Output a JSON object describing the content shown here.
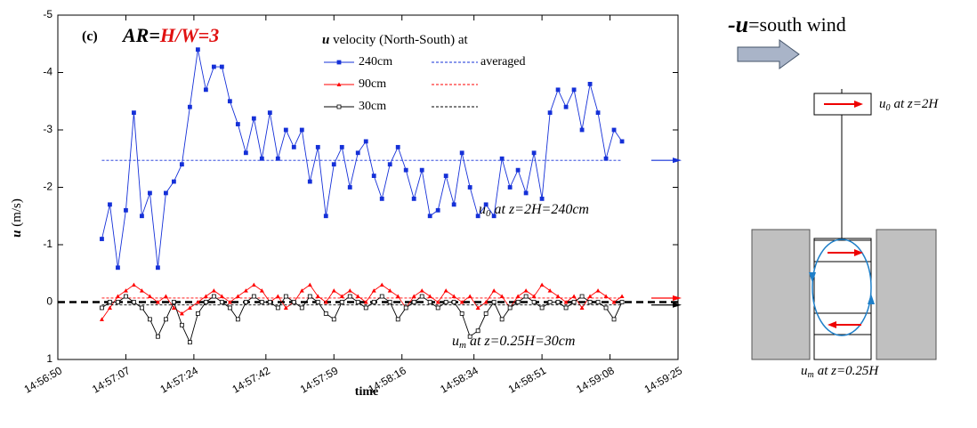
{
  "chart_data": {
    "type": "line",
    "panel_label": "(c)",
    "title_prefix": "AR=",
    "title_ratio": "H/W=3",
    "y_label_symbol": "u",
    "y_label_unit": "(m/s)",
    "x_label": "time",
    "legend_title_symbol": "u",
    "legend_title_text": "velocity (North-South) at",
    "average_label": "averaged",
    "upper_annotation": {
      "base": "u",
      "sub": "0",
      "rest": "at z=2H=240cm"
    },
    "lower_annotation": {
      "base": "u",
      "sub": "m",
      "rest": "at z=0.25H=30cm"
    },
    "diagram_title_symbol": "-u",
    "diagram_title_text": "=south wind",
    "diagram_upper": {
      "base": "u",
      "sub": "0",
      "rest": "at z=2H"
    },
    "diagram_lower": {
      "base": "u",
      "sub": "m",
      "rest": "at z=0.25H"
    },
    "xlim": [
      "14:56:50",
      "14:59:25"
    ],
    "xticks": [
      "14:56:50",
      "14:57:07",
      "14:57:24",
      "14:57:42",
      "14:57:59",
      "14:58:16",
      "14:58:34",
      "14:58:51",
      "14:59:08",
      "14:59:25"
    ],
    "ylim": [
      1,
      -5
    ],
    "yticks": [
      -5,
      -4,
      -3,
      -2,
      -1,
      0,
      1
    ],
    "reference_line": 0,
    "x": [
      "14:57:01",
      "14:57:03",
      "14:57:05",
      "14:57:07",
      "14:57:09",
      "14:57:11",
      "14:57:13",
      "14:57:15",
      "14:57:17",
      "14:57:19",
      "14:57:21",
      "14:57:23",
      "14:57:25",
      "14:57:27",
      "14:57:29",
      "14:57:31",
      "14:57:33",
      "14:57:35",
      "14:57:37",
      "14:57:39",
      "14:57:41",
      "14:57:43",
      "14:57:45",
      "14:57:47",
      "14:57:49",
      "14:57:51",
      "14:57:53",
      "14:57:55",
      "14:57:57",
      "14:57:59",
      "14:58:01",
      "14:58:03",
      "14:58:05",
      "14:58:07",
      "14:58:09",
      "14:58:11",
      "14:58:13",
      "14:58:15",
      "14:58:17",
      "14:58:19",
      "14:58:21",
      "14:58:23",
      "14:58:25",
      "14:58:27",
      "14:58:29",
      "14:58:31",
      "14:58:33",
      "14:58:35",
      "14:58:37",
      "14:58:39",
      "14:58:41",
      "14:58:43",
      "14:58:45",
      "14:58:47",
      "14:58:49",
      "14:58:51",
      "14:58:53",
      "14:58:55",
      "14:58:57",
      "14:58:59",
      "14:59:01",
      "14:59:03",
      "14:59:05",
      "14:59:07",
      "14:59:09",
      "14:59:11"
    ],
    "series": [
      {
        "name": "240cm",
        "color": "#1530d8",
        "marker": "square",
        "average": -2.47,
        "values": [
          -1.1,
          -1.7,
          -0.6,
          -1.6,
          -3.3,
          -1.5,
          -1.9,
          -0.6,
          -1.9,
          -2.1,
          -2.4,
          -3.4,
          -4.4,
          -3.7,
          -4.1,
          -4.1,
          -3.5,
          -3.1,
          -2.6,
          -3.2,
          -2.5,
          -3.3,
          -2.5,
          -3.0,
          -2.7,
          -3.0,
          -2.1,
          -2.7,
          -1.5,
          -2.4,
          -2.7,
          -2.0,
          -2.6,
          -2.8,
          -2.2,
          -1.8,
          -2.4,
          -2.7,
          -2.3,
          -1.8,
          -2.3,
          -1.5,
          -1.6,
          -2.2,
          -1.7,
          -2.6,
          -2.0,
          -1.5,
          -1.7,
          -1.5,
          -2.5,
          -2.0,
          -2.3,
          -1.9,
          -2.6,
          -1.8,
          -3.3,
          -3.7,
          -3.4,
          -3.7,
          -3.0,
          -3.8,
          -3.3,
          -2.5,
          -3.0,
          -2.8
        ]
      },
      {
        "name": "90cm",
        "color": "#ff0000",
        "marker": "triangle",
        "average": -0.07,
        "values": [
          0.3,
          0.1,
          -0.1,
          -0.2,
          -0.3,
          -0.2,
          -0.1,
          0,
          -0.1,
          0.1,
          0.2,
          0.1,
          0,
          -0.1,
          -0.2,
          -0.1,
          0,
          -0.1,
          -0.2,
          -0.3,
          -0.2,
          0,
          -0.1,
          0.1,
          0,
          -0.2,
          -0.3,
          -0.1,
          0,
          -0.2,
          -0.1,
          -0.2,
          -0.1,
          0,
          -0.2,
          -0.3,
          -0.2,
          -0.1,
          0.1,
          -0.1,
          -0.2,
          -0.1,
          0,
          -0.2,
          -0.1,
          0,
          -0.1,
          0.1,
          0,
          -0.2,
          -0.1,
          0.1,
          -0.1,
          -0.2,
          -0.1,
          -0.3,
          -0.2,
          -0.1,
          0,
          -0.1,
          0.1,
          -0.1,
          -0.2,
          -0.1,
          0,
          -0.1
        ]
      },
      {
        "name": "30cm",
        "color": "#000000",
        "marker": "hollow-square",
        "average": 0.05,
        "values": [
          0.1,
          0,
          0,
          -0.1,
          0,
          0.1,
          0.3,
          0.6,
          0.3,
          0,
          0.4,
          0.7,
          0.2,
          0,
          -0.1,
          0,
          0.1,
          0.3,
          0,
          -0.1,
          0,
          0,
          0.1,
          -0.1,
          0,
          0.1,
          -0.1,
          0,
          0.2,
          0.3,
          0,
          -0.1,
          0,
          0.1,
          0,
          -0.1,
          0,
          0.3,
          0.1,
          0,
          -0.1,
          0,
          0.1,
          0,
          0,
          0.2,
          0.6,
          0.5,
          0.2,
          0,
          0.3,
          0.1,
          0,
          -0.1,
          0,
          0.1,
          0,
          0,
          0.1,
          0,
          -0.1,
          0,
          0,
          0.1,
          0.3,
          0
        ]
      }
    ]
  }
}
